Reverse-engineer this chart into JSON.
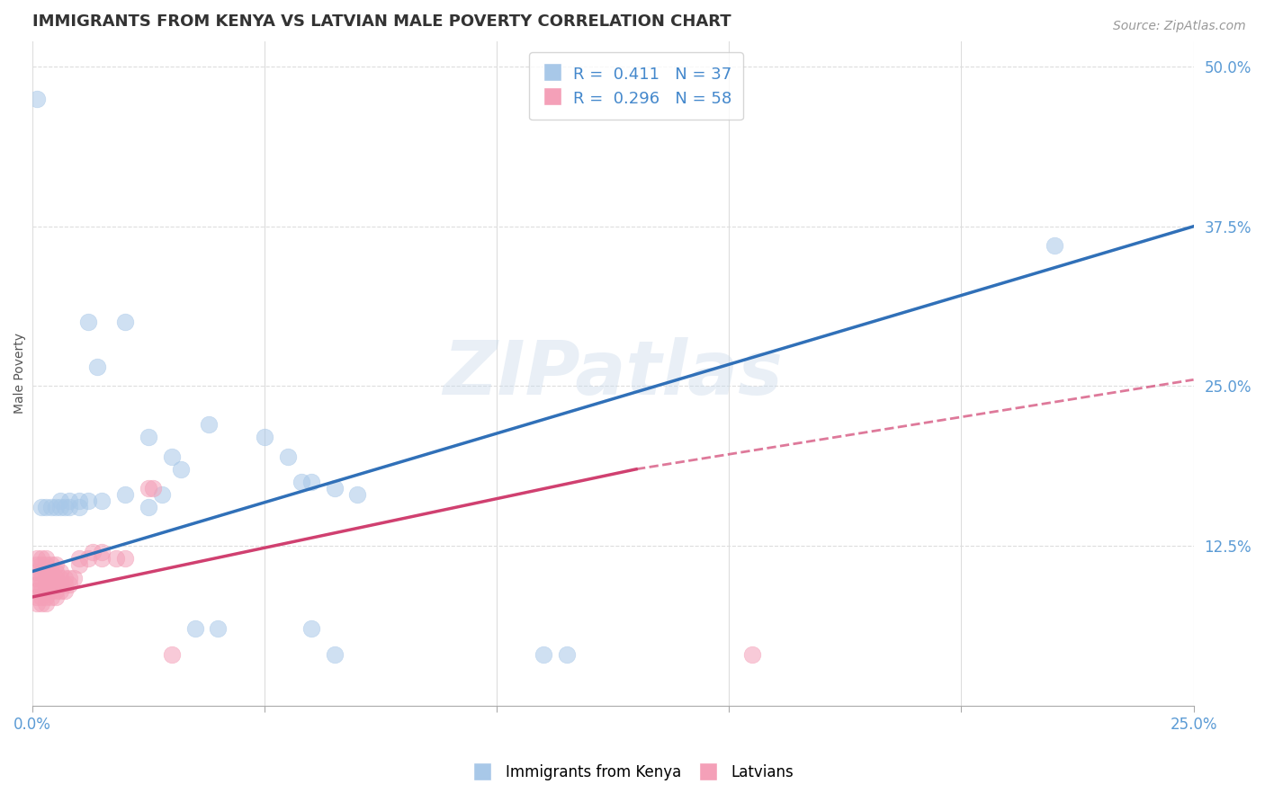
{
  "title": "IMMIGRANTS FROM KENYA VS LATVIAN MALE POVERTY CORRELATION CHART",
  "source": "Source: ZipAtlas.com",
  "ylabel": "Male Poverty",
  "legend_label_blue": "Immigrants from Kenya",
  "legend_label_pink": "Latvians",
  "r_blue": 0.411,
  "n_blue": 37,
  "r_pink": 0.296,
  "n_pink": 58,
  "blue_color": "#a8c8e8",
  "pink_color": "#f4a0b8",
  "blue_line_color": "#3070b8",
  "pink_line_color": "#d04070",
  "watermark": "ZIPatlas",
  "blue_points": [
    [
      0.001,
      0.475
    ],
    [
      0.012,
      0.3
    ],
    [
      0.014,
      0.265
    ],
    [
      0.02,
      0.3
    ],
    [
      0.025,
      0.21
    ],
    [
      0.03,
      0.195
    ],
    [
      0.032,
      0.185
    ],
    [
      0.038,
      0.22
    ],
    [
      0.05,
      0.21
    ],
    [
      0.055,
      0.195
    ],
    [
      0.058,
      0.175
    ],
    [
      0.06,
      0.175
    ],
    [
      0.065,
      0.17
    ],
    [
      0.07,
      0.165
    ],
    [
      0.002,
      0.155
    ],
    [
      0.003,
      0.155
    ],
    [
      0.004,
      0.155
    ],
    [
      0.005,
      0.155
    ],
    [
      0.006,
      0.155
    ],
    [
      0.006,
      0.16
    ],
    [
      0.007,
      0.155
    ],
    [
      0.008,
      0.155
    ],
    [
      0.008,
      0.16
    ],
    [
      0.01,
      0.155
    ],
    [
      0.01,
      0.16
    ],
    [
      0.012,
      0.16
    ],
    [
      0.015,
      0.16
    ],
    [
      0.02,
      0.165
    ],
    [
      0.025,
      0.155
    ],
    [
      0.028,
      0.165
    ],
    [
      0.035,
      0.06
    ],
    [
      0.04,
      0.06
    ],
    [
      0.06,
      0.06
    ],
    [
      0.065,
      0.04
    ],
    [
      0.11,
      0.04
    ],
    [
      0.115,
      0.04
    ],
    [
      0.22,
      0.36
    ]
  ],
  "pink_points": [
    [
      0.001,
      0.08
    ],
    [
      0.001,
      0.085
    ],
    [
      0.001,
      0.09
    ],
    [
      0.001,
      0.095
    ],
    [
      0.001,
      0.1
    ],
    [
      0.001,
      0.105
    ],
    [
      0.001,
      0.11
    ],
    [
      0.001,
      0.115
    ],
    [
      0.002,
      0.08
    ],
    [
      0.002,
      0.085
    ],
    [
      0.002,
      0.09
    ],
    [
      0.002,
      0.095
    ],
    [
      0.002,
      0.1
    ],
    [
      0.002,
      0.105
    ],
    [
      0.002,
      0.11
    ],
    [
      0.002,
      0.115
    ],
    [
      0.003,
      0.08
    ],
    [
      0.003,
      0.085
    ],
    [
      0.003,
      0.09
    ],
    [
      0.003,
      0.095
    ],
    [
      0.003,
      0.1
    ],
    [
      0.003,
      0.105
    ],
    [
      0.003,
      0.11
    ],
    [
      0.003,
      0.115
    ],
    [
      0.004,
      0.085
    ],
    [
      0.004,
      0.09
    ],
    [
      0.004,
      0.095
    ],
    [
      0.004,
      0.1
    ],
    [
      0.004,
      0.105
    ],
    [
      0.004,
      0.11
    ],
    [
      0.005,
      0.085
    ],
    [
      0.005,
      0.09
    ],
    [
      0.005,
      0.095
    ],
    [
      0.005,
      0.1
    ],
    [
      0.005,
      0.105
    ],
    [
      0.005,
      0.11
    ],
    [
      0.006,
      0.09
    ],
    [
      0.006,
      0.095
    ],
    [
      0.006,
      0.1
    ],
    [
      0.006,
      0.105
    ],
    [
      0.007,
      0.09
    ],
    [
      0.007,
      0.095
    ],
    [
      0.007,
      0.1
    ],
    [
      0.008,
      0.095
    ],
    [
      0.008,
      0.1
    ],
    [
      0.009,
      0.1
    ],
    [
      0.01,
      0.11
    ],
    [
      0.01,
      0.115
    ],
    [
      0.012,
      0.115
    ],
    [
      0.013,
      0.12
    ],
    [
      0.015,
      0.115
    ],
    [
      0.015,
      0.12
    ],
    [
      0.018,
      0.115
    ],
    [
      0.02,
      0.115
    ],
    [
      0.025,
      0.17
    ],
    [
      0.026,
      0.17
    ],
    [
      0.03,
      0.04
    ],
    [
      0.155,
      0.04
    ]
  ],
  "xlim": [
    0.0,
    0.25
  ],
  "ylim": [
    0.0,
    0.52
  ],
  "yticks": [
    0.125,
    0.25,
    0.375,
    0.5
  ],
  "ytick_labels": [
    "12.5%",
    "25.0%",
    "37.5%",
    "50.0%"
  ],
  "xticks": [
    0.0,
    0.05,
    0.1,
    0.15,
    0.2,
    0.25
  ],
  "xtick_labels": [
    "0.0%",
    "",
    "",
    "",
    "",
    "25.0%"
  ],
  "title_fontsize": 13,
  "axis_label_fontsize": 10,
  "tick_fontsize": 12
}
